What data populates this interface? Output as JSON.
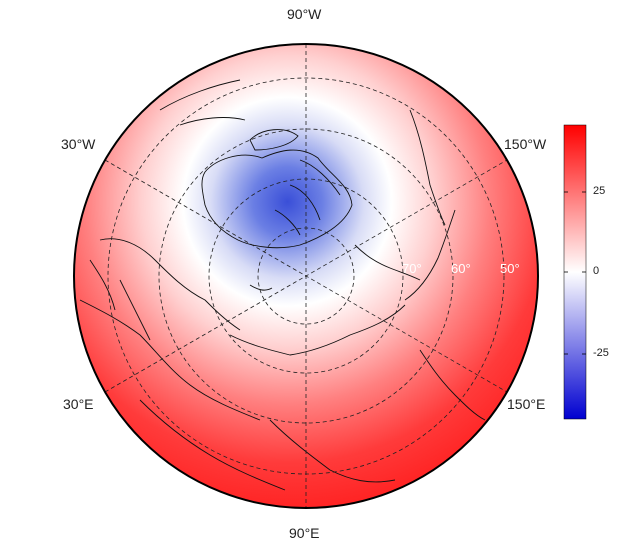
{
  "map": {
    "projection": "polar-stereographic-north",
    "colormap": [
      "#0000d0",
      "#ffffff",
      "#ff0000"
    ],
    "longitude_labels": {
      "top": "90°W",
      "upper_left": "30°W",
      "upper_right": "150°W",
      "lower_left": "30°E",
      "lower_right": "150°E",
      "bottom": "90°E"
    },
    "latitude_labels": [
      "70°",
      "60°",
      "50°"
    ],
    "colorbar": {
      "min": -45,
      "max": 45,
      "ticks": [
        "25",
        "0",
        "-25"
      ]
    }
  }
}
